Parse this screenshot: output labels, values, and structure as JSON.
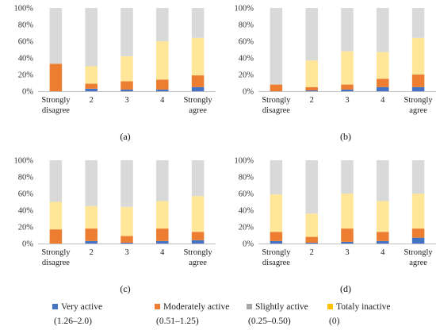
{
  "colors": {
    "very_active": "#4472C4",
    "moderately_active": "#ED7D31",
    "slightly_active": "#D9D9D9",
    "totaly_inactive": "#FFE699"
  },
  "legend": [
    {
      "label": "Very active",
      "range": "(1.26–2.0)",
      "color": "#4472C4"
    },
    {
      "label": "Moderately active",
      "range": "(0.51–1.25)",
      "color": "#ED7D31"
    },
    {
      "label": "Slightly active",
      "range": "(0.25–0.50)",
      "color": "#A5A5A5"
    },
    {
      "label": "Totaly inactive",
      "range": "(0)",
      "color": "#FFC000"
    }
  ],
  "chart_data": [
    {
      "type": "bar",
      "stacked": true,
      "panel": "(a)",
      "categories": [
        [
          "Strongly",
          "disagree"
        ],
        [
          "2"
        ],
        [
          "3"
        ],
        [
          "4"
        ],
        [
          "Strongly",
          "agree"
        ]
      ],
      "yticks": [
        "0%",
        "20%",
        "40%",
        "60%",
        "80%",
        "100%"
      ],
      "ylim": [
        0,
        100
      ],
      "series": [
        {
          "key": "very_active",
          "values": [
            0,
            3,
            2,
            2,
            5
          ]
        },
        {
          "key": "moderately_active",
          "values": [
            33,
            6,
            10,
            12,
            14
          ]
        },
        {
          "key": "totaly_inactive",
          "values": [
            0,
            21,
            30,
            46,
            45
          ]
        },
        {
          "key": "slightly_active",
          "values": [
            67,
            70,
            58,
            40,
            36
          ]
        }
      ]
    },
    {
      "type": "bar",
      "stacked": true,
      "panel": "(b)",
      "categories": [
        [
          "Strongly",
          "disagree"
        ],
        [
          "2"
        ],
        [
          "3"
        ],
        [
          "4"
        ],
        [
          "Strongly",
          "agree"
        ]
      ],
      "yticks": [
        "0%",
        "20%",
        "40%",
        "60%",
        "80%",
        "100%"
      ],
      "ylim": [
        0,
        100
      ],
      "series": [
        {
          "key": "very_active",
          "values": [
            0,
            1,
            2,
            5,
            5
          ]
        },
        {
          "key": "moderately_active",
          "values": [
            8,
            4,
            6,
            10,
            15
          ]
        },
        {
          "key": "totaly_inactive",
          "values": [
            0,
            32,
            40,
            32,
            44
          ]
        },
        {
          "key": "slightly_active",
          "values": [
            92,
            63,
            52,
            53,
            36
          ]
        }
      ]
    },
    {
      "type": "bar",
      "stacked": true,
      "panel": "(c)",
      "categories": [
        [
          "Strongly",
          "disagree"
        ],
        [
          "2"
        ],
        [
          "3"
        ],
        [
          "4"
        ],
        [
          "Strongly",
          "agree"
        ]
      ],
      "yticks": [
        "0%",
        "20%",
        "40%",
        "60%",
        "80%",
        "100%"
      ],
      "ylim": [
        0,
        100
      ],
      "series": [
        {
          "key": "very_active",
          "values": [
            0,
            3,
            1,
            3,
            4
          ]
        },
        {
          "key": "moderately_active",
          "values": [
            17,
            15,
            8,
            15,
            10
          ]
        },
        {
          "key": "totaly_inactive",
          "values": [
            33,
            27,
            35,
            33,
            43
          ]
        },
        {
          "key": "slightly_active",
          "values": [
            50,
            55,
            56,
            49,
            43
          ]
        }
      ]
    },
    {
      "type": "bar",
      "stacked": true,
      "panel": "(d)",
      "categories": [
        [
          "Strongly",
          "disagree"
        ],
        [
          "2"
        ],
        [
          "3"
        ],
        [
          "4"
        ],
        [
          "Strongly",
          "agree"
        ]
      ],
      "yticks": [
        "0%",
        "20%",
        "40%",
        "60%",
        "80%",
        "100%"
      ],
      "ylim": [
        0,
        100
      ],
      "series": [
        {
          "key": "very_active",
          "values": [
            3,
            1,
            2,
            3,
            7
          ]
        },
        {
          "key": "moderately_active",
          "values": [
            11,
            7,
            16,
            11,
            11
          ]
        },
        {
          "key": "totaly_inactive",
          "values": [
            45,
            28,
            42,
            37,
            42
          ]
        },
        {
          "key": "slightly_active",
          "values": [
            41,
            64,
            40,
            49,
            40
          ]
        }
      ]
    }
  ]
}
